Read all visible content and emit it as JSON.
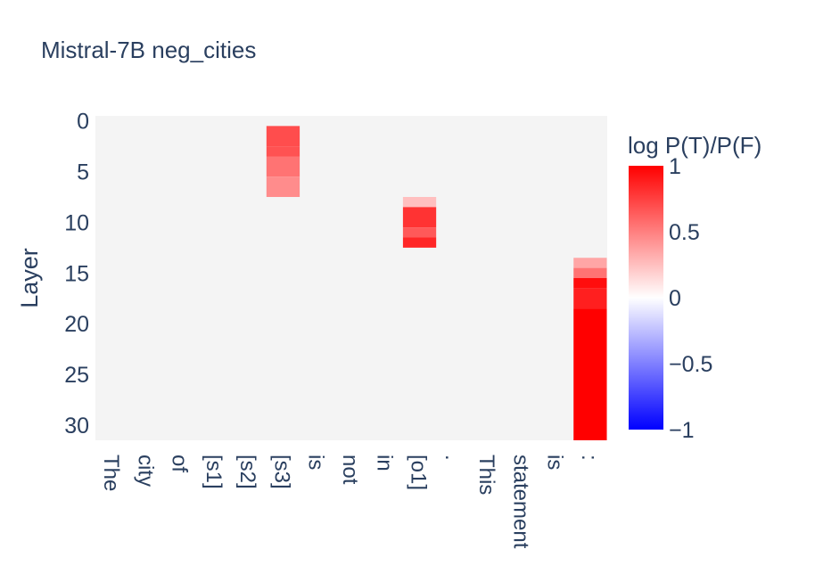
{
  "chart_data": {
    "type": "heatmap",
    "title": "Mistral-7B neg_cities",
    "xlabel": "",
    "ylabel": "Layer",
    "x": [
      "The",
      "city",
      "of",
      "[s1]",
      "[s2]",
      "[s3]",
      "is",
      "not",
      "in",
      "[o1]",
      ".",
      "This",
      "statement",
      "is",
      ":"
    ],
    "y_ticks": [
      0,
      5,
      10,
      15,
      20,
      25,
      30
    ],
    "ylim": [
      0,
      31
    ],
    "y_reversed": true,
    "colorbar": {
      "title": "log P(T)/P(F)",
      "range": [
        -1,
        1
      ],
      "ticks": [
        -1,
        -0.5,
        0,
        0.5,
        1
      ],
      "tick_labels": [
        "−1",
        "−0.5",
        "0",
        "0.5",
        "1"
      ],
      "colorscale": [
        "#0000ff",
        "#ffffff",
        "#ff0000"
      ]
    },
    "empty_color": "#f4f4f4",
    "cells": [
      {
        "x": "[s3]",
        "layer_from": 1,
        "layer_to": 2,
        "value": 0.7
      },
      {
        "x": "[s3]",
        "layer_from": 3,
        "layer_to": 3,
        "value": 0.68
      },
      {
        "x": "[s3]",
        "layer_from": 4,
        "layer_to": 5,
        "value": 0.55
      },
      {
        "x": "[s3]",
        "layer_from": 6,
        "layer_to": 7,
        "value": 0.45
      },
      {
        "x": "[o1]",
        "layer_from": 8,
        "layer_to": 8,
        "value": 0.25
      },
      {
        "x": "[o1]",
        "layer_from": 9,
        "layer_to": 10,
        "value": 0.8
      },
      {
        "x": "[o1]",
        "layer_from": 11,
        "layer_to": 11,
        "value": 0.65
      },
      {
        "x": "[o1]",
        "layer_from": 12,
        "layer_to": 12,
        "value": 0.85
      },
      {
        "x": ":",
        "layer_from": 14,
        "layer_to": 14,
        "value": 0.35
      },
      {
        "x": ":",
        "layer_from": 15,
        "layer_to": 15,
        "value": 0.55
      },
      {
        "x": ":",
        "layer_from": 16,
        "layer_to": 16,
        "value": 0.95
      },
      {
        "x": ":",
        "layer_from": 17,
        "layer_to": 18,
        "value": 0.88
      },
      {
        "x": ":",
        "layer_from": 19,
        "layer_to": 31,
        "value": 1.0
      }
    ]
  }
}
